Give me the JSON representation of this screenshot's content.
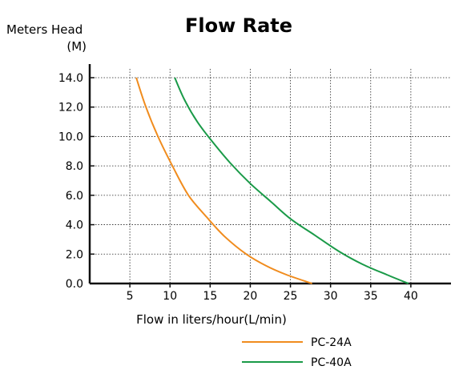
{
  "chart_data": {
    "type": "line",
    "title": "Flow Rate",
    "ylabel_line1": "Meters Head",
    "ylabel_line2": "(M)",
    "xlabel": "Flow in liters/hour(L/min)",
    "xlim": [
      0,
      45
    ],
    "ylim": [
      0,
      14
    ],
    "x_ticks": [
      5,
      10,
      15,
      20,
      25,
      30,
      35,
      40
    ],
    "x_tick_labels": [
      "5",
      "10",
      "15",
      "20",
      "25",
      "30",
      "35",
      "40"
    ],
    "y_ticks": [
      0,
      2,
      4,
      6,
      8,
      10,
      12,
      14
    ],
    "y_tick_labels": [
      "0.0",
      "2.0",
      "4.0",
      "6.0",
      "8.0",
      "10.0",
      "12.0",
      "14.0"
    ],
    "grid": true,
    "legend_position": "bottom-right",
    "series": [
      {
        "name": "PC-24A",
        "color": "#f08c1e",
        "points": [
          [
            5.8,
            14
          ],
          [
            7,
            12
          ],
          [
            8.5,
            10
          ],
          [
            10.3,
            8
          ],
          [
            12.3,
            6
          ],
          [
            14.6,
            4.5
          ],
          [
            16.8,
            3.2
          ],
          [
            19.5,
            2
          ],
          [
            22,
            1.2
          ],
          [
            24.5,
            0.6
          ],
          [
            27.7,
            0
          ]
        ]
      },
      {
        "name": "PC-40A",
        "color": "#1a9a48",
        "points": [
          [
            10.6,
            14
          ],
          [
            11.8,
            12.5
          ],
          [
            13.4,
            11
          ],
          [
            15.2,
            9.7
          ],
          [
            17.5,
            8.2
          ],
          [
            20,
            6.8
          ],
          [
            22.5,
            5.6
          ],
          [
            25,
            4.4
          ],
          [
            28,
            3.3
          ],
          [
            31,
            2.2
          ],
          [
            34,
            1.3
          ],
          [
            37,
            0.6
          ],
          [
            39.7,
            0
          ]
        ]
      }
    ]
  }
}
